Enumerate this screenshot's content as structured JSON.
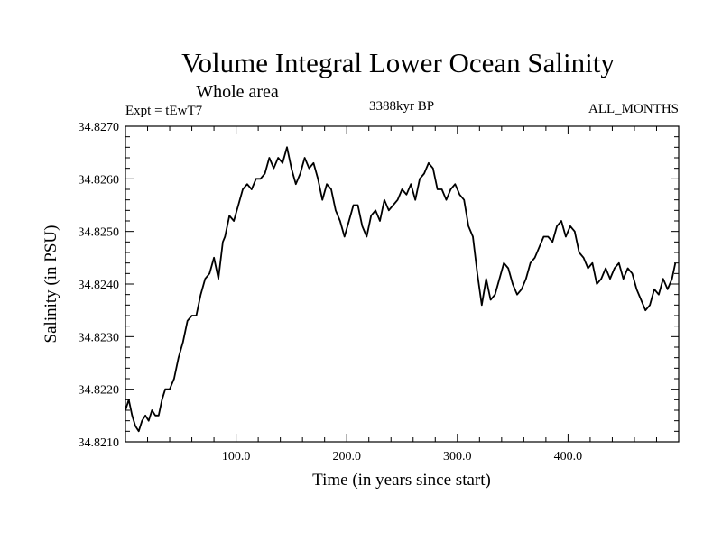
{
  "chart_data": {
    "type": "line",
    "title": "Volume Integral Lower Ocean Salinity",
    "subtitle": "Whole area",
    "left_label": "Expt = tEwT7",
    "center_label": "3388kyr BP",
    "right_label": "ALL_MONTHS",
    "xlabel": "Time (in years since start)",
    "ylabel": "Salinity (in PSU)",
    "xlim": [
      0,
      500
    ],
    "ylim": [
      34.821,
      34.827
    ],
    "x_ticks": [
      100,
      200,
      300,
      400
    ],
    "x_tick_labels": [
      "100.0",
      "200.0",
      "300.0",
      "400.0"
    ],
    "y_ticks": [
      34.821,
      34.822,
      34.823,
      34.824,
      34.825,
      34.826,
      34.827
    ],
    "y_tick_labels": [
      "34.8210",
      "34.8220",
      "34.8230",
      "34.8240",
      "34.8250",
      "34.8260",
      "34.8270"
    ],
    "line_color": "#000000",
    "series": [
      {
        "name": "salinity",
        "x": [
          0,
          3,
          6,
          9,
          12,
          15,
          18,
          21,
          24,
          27,
          30,
          33,
          36,
          40,
          44,
          48,
          52,
          56,
          60,
          64,
          68,
          72,
          76,
          80,
          84,
          88,
          90,
          94,
          98,
          102,
          106,
          110,
          114,
          118,
          122,
          126,
          130,
          134,
          138,
          142,
          146,
          150,
          154,
          158,
          162,
          166,
          170,
          174,
          178,
          182,
          186,
          190,
          194,
          198,
          202,
          206,
          210,
          214,
          218,
          222,
          226,
          230,
          234,
          238,
          242,
          246,
          250,
          254,
          258,
          262,
          266,
          270,
          274,
          278,
          282,
          286,
          290,
          294,
          298,
          302,
          306,
          310,
          314,
          318,
          322,
          326,
          330,
          334,
          338,
          342,
          346,
          350,
          354,
          358,
          362,
          366,
          370,
          374,
          378,
          382,
          386,
          390,
          394,
          398,
          402,
          406,
          410,
          414,
          418,
          422,
          426,
          430,
          434,
          438,
          442,
          446,
          450,
          454,
          458,
          462,
          466,
          470,
          474,
          478,
          482,
          486,
          490,
          494,
          497
        ],
        "y": [
          34.8216,
          34.8218,
          34.8215,
          34.8213,
          34.8212,
          34.8214,
          34.8215,
          34.8214,
          34.8216,
          34.8215,
          34.8215,
          34.8218,
          34.822,
          34.822,
          34.8222,
          34.8226,
          34.8229,
          34.8233,
          34.8234,
          34.8234,
          34.8238,
          34.8241,
          34.8242,
          34.8245,
          34.8241,
          34.8248,
          34.8249,
          34.8253,
          34.8252,
          34.8255,
          34.8258,
          34.8259,
          34.8258,
          34.826,
          34.826,
          34.8261,
          34.8264,
          34.8262,
          34.8264,
          34.8263,
          34.8266,
          34.8262,
          34.8259,
          34.8261,
          34.8264,
          34.8262,
          34.8263,
          34.826,
          34.8256,
          34.8259,
          34.8258,
          34.8254,
          34.8252,
          34.8249,
          34.8252,
          34.8255,
          34.8255,
          34.8251,
          34.8249,
          34.8253,
          34.8254,
          34.8252,
          34.8256,
          34.8254,
          34.8255,
          34.8256,
          34.8258,
          34.8257,
          34.8259,
          34.8256,
          34.826,
          34.8261,
          34.8263,
          34.8262,
          34.8258,
          34.8258,
          34.8256,
          34.8258,
          34.8259,
          34.8257,
          34.8256,
          34.8251,
          34.8249,
          34.8242,
          34.8236,
          34.8241,
          34.8237,
          34.8238,
          34.8241,
          34.8244,
          34.8243,
          34.824,
          34.8238,
          34.8239,
          34.8241,
          34.8244,
          34.8245,
          34.8247,
          34.8249,
          34.8249,
          34.8248,
          34.8251,
          34.8252,
          34.8249,
          34.8251,
          34.825,
          34.8246,
          34.8245,
          34.8243,
          34.8244,
          34.824,
          34.8241,
          34.8243,
          34.8241,
          34.8243,
          34.8244,
          34.8241,
          34.8243,
          34.8242,
          34.8239,
          34.8237,
          34.8235,
          34.8236,
          34.8239,
          34.8238,
          34.8241,
          34.8239,
          34.8241,
          34.8244
        ]
      }
    ]
  }
}
